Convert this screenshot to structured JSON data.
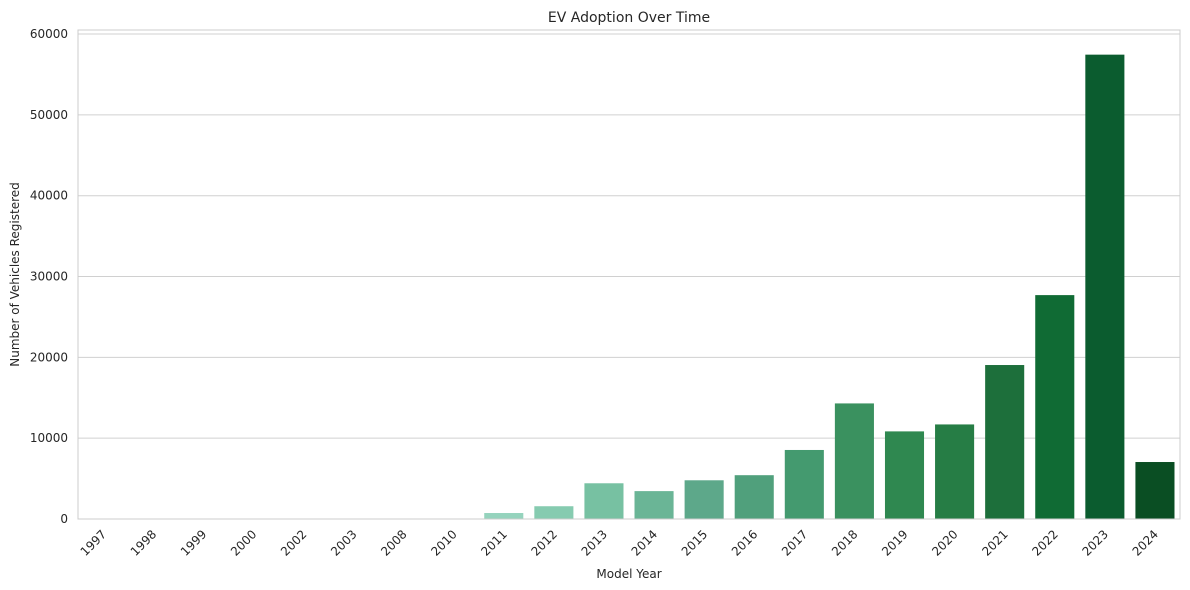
{
  "chart_data": {
    "type": "bar",
    "title": "EV Adoption Over Time",
    "xlabel": "Model Year",
    "ylabel": "Number of Vehicles Registered",
    "categories": [
      "1997",
      "1998",
      "1999",
      "2000",
      "2002",
      "2003",
      "2008",
      "2010",
      "2011",
      "2012",
      "2013",
      "2014",
      "2015",
      "2016",
      "2017",
      "2018",
      "2019",
      "2020",
      "2021",
      "2022",
      "2023",
      "2024"
    ],
    "values": [
      1,
      1,
      3,
      5,
      1,
      1,
      19,
      23,
      740,
      1580,
      4420,
      3450,
      4790,
      5420,
      8540,
      14300,
      10840,
      11700,
      19050,
      27700,
      57450,
      7050
    ],
    "ylim": [
      0,
      60500
    ],
    "yticks": [
      0,
      10000,
      20000,
      30000,
      40000,
      50000,
      60000
    ],
    "grid": true,
    "colors": [
      "#f7fcf5",
      "#f2faf6",
      "#eaf7f3",
      "#e1f3ef",
      "#d6efe9",
      "#c9eae0",
      "#b5e2d4",
      "#a0d9c7",
      "#95d3bd",
      "#86cbb0",
      "#77c1a2",
      "#6ab596",
      "#5da88a",
      "#50a07c",
      "#449a6f",
      "#3a915f",
      "#2f8850",
      "#267d45",
      "#1d6f3b",
      "#106b34",
      "#0b5c2f",
      "#0a4e23"
    ]
  }
}
